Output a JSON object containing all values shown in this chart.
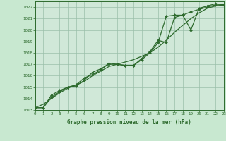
{
  "title": "Graphe pression niveau de la mer (hPa)",
  "background_color": "#c8e8d0",
  "plot_bg_color": "#d0e8d8",
  "grid_color": "#9abfaa",
  "line_color": "#2d6a2d",
  "marker_color": "#2d6a2d",
  "xlim": [
    0,
    23
  ],
  "ylim": [
    1013,
    1022.5
  ],
  "xticks": [
    0,
    1,
    2,
    3,
    4,
    5,
    6,
    7,
    8,
    9,
    10,
    11,
    12,
    13,
    14,
    15,
    16,
    17,
    18,
    19,
    20,
    21,
    22,
    23
  ],
  "yticks": [
    1013,
    1014,
    1015,
    1016,
    1017,
    1018,
    1019,
    1020,
    1021,
    1022
  ],
  "series1_x": [
    0,
    1,
    2,
    3,
    4,
    5,
    6,
    7,
    8,
    9,
    10,
    11,
    12,
    13,
    14,
    15,
    16,
    17,
    18,
    19,
    20,
    21,
    22,
    23
  ],
  "series1_y": [
    1013.2,
    1013.2,
    1014.3,
    1014.7,
    1015.0,
    1015.1,
    1015.6,
    1016.3,
    1016.6,
    1017.0,
    1017.0,
    1016.9,
    1016.9,
    1017.5,
    1018.1,
    1019.1,
    1018.9,
    1021.1,
    1021.3,
    1020.0,
    1021.9,
    1022.1,
    1022.3,
    1022.2
  ],
  "series2_x": [
    0,
    1,
    2,
    3,
    4,
    5,
    6,
    7,
    8,
    9,
    10,
    11,
    12,
    13,
    14,
    15,
    16,
    17,
    18,
    19,
    20,
    21,
    22,
    23
  ],
  "series2_y": [
    1013.2,
    1013.2,
    1014.1,
    1014.6,
    1015.0,
    1015.2,
    1015.8,
    1016.1,
    1016.5,
    1017.1,
    1017.0,
    1016.9,
    1016.9,
    1017.4,
    1018.0,
    1018.9,
    1021.2,
    1021.3,
    1021.3,
    1021.6,
    1021.8,
    1022.0,
    1022.2,
    1022.2
  ],
  "series3_x": [
    0,
    1,
    2,
    3,
    4,
    5,
    6,
    7,
    8,
    9,
    10,
    11,
    12,
    13,
    14,
    15,
    16,
    17,
    18,
    19,
    20,
    21,
    22,
    23
  ],
  "series3_y": [
    1013.2,
    1013.5,
    1014.0,
    1014.5,
    1014.9,
    1015.2,
    1015.5,
    1016.0,
    1016.4,
    1016.8,
    1017.0,
    1017.2,
    1017.4,
    1017.7,
    1018.0,
    1018.5,
    1019.1,
    1019.8,
    1020.4,
    1021.0,
    1021.5,
    1021.9,
    1022.1,
    1022.2
  ]
}
